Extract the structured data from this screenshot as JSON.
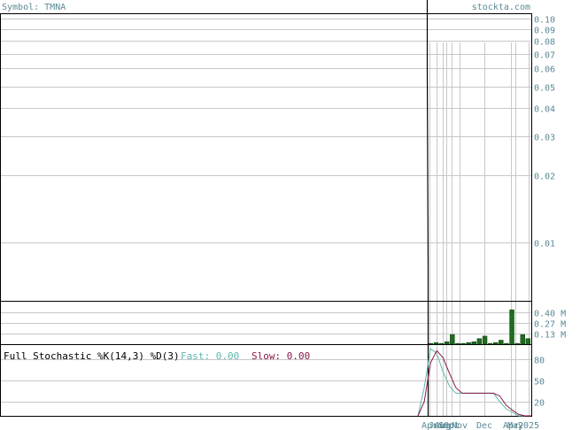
{
  "header": {
    "symbol_label": "Symbol: TMNA",
    "site": "stockta.com"
  },
  "chart_data": [
    {
      "type": "line",
      "panel": "price",
      "y_scale": "log",
      "y_ticks": [
        "0.10",
        "0.09",
        "0.08",
        "0.07",
        "0.06",
        "0.05",
        "0.04",
        "0.03",
        "0.02",
        "0.01"
      ],
      "y_tick_values": [
        0.1,
        0.09,
        0.08,
        0.07,
        0.06,
        0.05,
        0.04,
        0.03,
        0.02,
        0.01
      ],
      "ylim": [
        0.0055,
        0.105
      ],
      "x_ticks": [
        "Apr",
        "Jun",
        "Aug",
        "Sep",
        "Oct",
        "Nov",
        "Dec",
        "Apr",
        "May",
        "2025"
      ],
      "grid": true
    },
    {
      "type": "bar",
      "panel": "volume",
      "y_ticks": [
        "0.40 M",
        "0.27 M",
        "0.13 M"
      ],
      "y_tick_values": [
        0.4,
        0.27,
        0.13
      ],
      "ylim": [
        0,
        0.53
      ],
      "values": [
        0.01,
        0.02,
        0.01,
        0.03,
        0.12,
        0.01,
        0.01,
        0.02,
        0.03,
        0.07,
        0.1,
        0.01,
        0.02,
        0.05,
        0.01,
        0.43,
        0.01,
        0.12,
        0.07
      ]
    },
    {
      "type": "line",
      "panel": "stochastic",
      "title": "Full Stochastic %K(14,3) %D(3)",
      "fast_label": "Fast: 0.00",
      "slow_label": "Slow: 0.00",
      "y_ticks": [
        "80",
        "50",
        "20"
      ],
      "y_tick_values": [
        80,
        50,
        20
      ],
      "ylim": [
        0,
        100
      ],
      "colors": {
        "fast": "#5fb8b0",
        "slow": "#8b1a4a"
      },
      "fast_values": [
        0,
        40,
        95,
        88,
        62,
        42,
        32,
        32,
        32,
        32,
        32,
        32,
        32,
        20,
        10,
        5,
        0,
        0,
        0
      ],
      "slow_values": [
        0,
        20,
        75,
        92,
        82,
        60,
        40,
        32,
        32,
        32,
        32,
        32,
        32,
        28,
        15,
        8,
        2,
        0,
        0
      ]
    }
  ]
}
